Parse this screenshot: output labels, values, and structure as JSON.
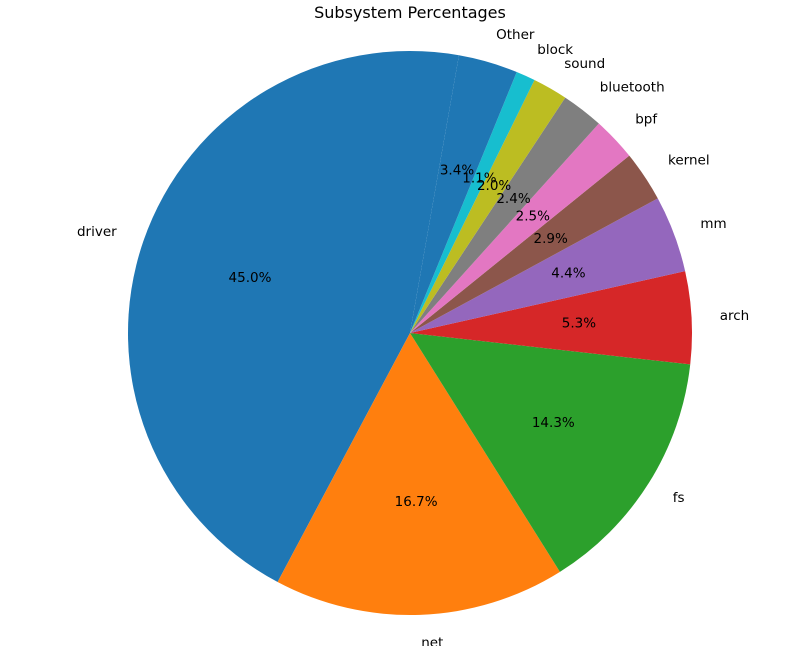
{
  "chart_data": {
    "type": "pie",
    "title": "Subsystem Percentages",
    "start_angle_deg": 80,
    "direction": "counterclockwise",
    "slices": [
      {
        "label": "driver",
        "value": 45.0,
        "pct_text": "45.0%",
        "color": "#1f77b4"
      },
      {
        "label": "net",
        "value": 16.7,
        "pct_text": "16.7%",
        "color": "#ff7f0e"
      },
      {
        "label": "fs",
        "value": 14.3,
        "pct_text": "14.3%",
        "color": "#2ca02c"
      },
      {
        "label": "arch",
        "value": 5.3,
        "pct_text": "5.3%",
        "color": "#d62728"
      },
      {
        "label": "mm",
        "value": 4.4,
        "pct_text": "4.4%",
        "color": "#9467bd"
      },
      {
        "label": "kernel",
        "value": 2.9,
        "pct_text": "2.9%",
        "color": "#8c564b"
      },
      {
        "label": "bpf",
        "value": 2.5,
        "pct_text": "2.5%",
        "color": "#e377c2"
      },
      {
        "label": "bluetooth",
        "value": 2.4,
        "pct_text": "2.4%",
        "color": "#7f7f7f"
      },
      {
        "label": "sound",
        "value": 2.0,
        "pct_text": "2.0%",
        "color": "#bcbd22"
      },
      {
        "label": "block",
        "value": 1.1,
        "pct_text": "1.1%",
        "color": "#17becf"
      },
      {
        "label": "Other",
        "value": 3.4,
        "pct_text": "3.4%",
        "color": "#1f77b4"
      }
    ]
  }
}
